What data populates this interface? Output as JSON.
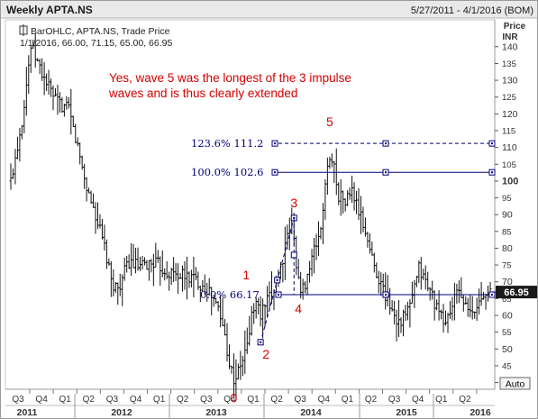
{
  "header": {
    "title": "Weekly APTA.NS",
    "date_range": "5/27/2011 - 4/1/2016 (BOM)"
  },
  "legend": {
    "line1": "BarOHLC, APTA.NS, Trade Price",
    "line2": "1/1/2016, 66.00, 71.15, 65.00, 66.95"
  },
  "annotation": {
    "line1": "Yes, wave 5 was the longest of the 3 impulse",
    "line2": "waves and is thus clearly extended"
  },
  "yaxis": {
    "title1": "Price",
    "title2": "INR",
    "current_price_label": "66.95",
    "auto_button": "Auto"
  },
  "colors": {
    "bars": "#111111",
    "annotation": "#d40000",
    "fib": "#00007a",
    "price_tag_bg": "#1a1a1a"
  },
  "chart_data": {
    "type": "bar",
    "subtype": "ohlc",
    "series_name": "APTA.NS",
    "x_range": [
      "2011-05-27",
      "2016-04-01"
    ],
    "ylim": [
      38,
      148
    ],
    "yticks": [
      40,
      45,
      50,
      55,
      60,
      65,
      70,
      75,
      80,
      85,
      90,
      95,
      100,
      105,
      110,
      115,
      120,
      125,
      130,
      135,
      140
    ],
    "quarter_ticks": [
      "Q3",
      "Q4",
      "Q1",
      "Q2",
      "Q3",
      "Q4",
      "Q1",
      "Q2",
      "Q3",
      "Q4",
      "Q1",
      "Q2",
      "Q3",
      "Q4",
      "Q1",
      "Q2",
      "Q3",
      "Q4",
      "Q1",
      "Q2"
    ],
    "year_ticks": [
      "2011",
      "2012",
      "2013",
      "2014",
      "2015",
      "2016"
    ],
    "grid": false,
    "last_close": 66.95,
    "price_path": [
      [
        0,
        100
      ],
      [
        5,
        118
      ],
      [
        9,
        140
      ],
      [
        14,
        132
      ],
      [
        20,
        124
      ],
      [
        26,
        121
      ],
      [
        30,
        110
      ],
      [
        34,
        98
      ],
      [
        38,
        90
      ],
      [
        42,
        80
      ],
      [
        45,
        70
      ],
      [
        48,
        68
      ],
      [
        53,
        76
      ],
      [
        58,
        74
      ],
      [
        64,
        76
      ],
      [
        70,
        73
      ],
      [
        76,
        72
      ],
      [
        82,
        71
      ],
      [
        88,
        68
      ],
      [
        93,
        62
      ],
      [
        96,
        54
      ],
      [
        98,
        46
      ],
      [
        100,
        41
      ],
      [
        102,
        43
      ],
      [
        104,
        47
      ],
      [
        106,
        51
      ],
      [
        108,
        60
      ],
      [
        110,
        64
      ],
      [
        112,
        60
      ],
      [
        114,
        63
      ],
      [
        117,
        66
      ],
      [
        120,
        72
      ],
      [
        123,
        80
      ],
      [
        126,
        88
      ],
      [
        128,
        76
      ],
      [
        130,
        66
      ],
      [
        133,
        72
      ],
      [
        136,
        79
      ],
      [
        139,
        86
      ],
      [
        141,
        98
      ],
      [
        143,
        108
      ],
      [
        145,
        104
      ],
      [
        147,
        96
      ],
      [
        150,
        94
      ],
      [
        153,
        97
      ],
      [
        156,
        91
      ],
      [
        159,
        85
      ],
      [
        162,
        77
      ],
      [
        165,
        71
      ],
      [
        168,
        66
      ],
      [
        171,
        62
      ],
      [
        174,
        58
      ],
      [
        177,
        60
      ],
      [
        180,
        65
      ],
      [
        183,
        74
      ],
      [
        186,
        70
      ],
      [
        189,
        66
      ],
      [
        192,
        60
      ],
      [
        195,
        58
      ],
      [
        198,
        63
      ],
      [
        201,
        68
      ],
      [
        204,
        62
      ],
      [
        207,
        60
      ],
      [
        210,
        64
      ],
      [
        213,
        68
      ],
      [
        215,
        67
      ]
    ],
    "waves": [
      {
        "label": "0",
        "x": 100,
        "price": 39
      },
      {
        "label": "1",
        "x": 108,
        "price": 67
      },
      {
        "label": "2",
        "x": 112,
        "price": 52
      },
      {
        "label": "3",
        "x": 127,
        "price": 89
      },
      {
        "label": "4",
        "x": 129,
        "price": 66
      },
      {
        "label": "5",
        "x": 143,
        "price": 112
      }
    ],
    "fib_levels": [
      {
        "label": "123.6% 111.2",
        "pct": "123.6%",
        "value": 111.2,
        "style": "dashed"
      },
      {
        "label": "100.0% 102.6",
        "pct": "100.0%",
        "value": 102.6,
        "style": "solid"
      },
      {
        "label": "0.0% 66.17",
        "pct": "0.0%",
        "value": 66.17,
        "style": "solid"
      }
    ],
    "wave_projection": {
      "from": [
        112,
        52
      ],
      "to": [
        127,
        89
      ],
      "style": "dashed"
    }
  }
}
